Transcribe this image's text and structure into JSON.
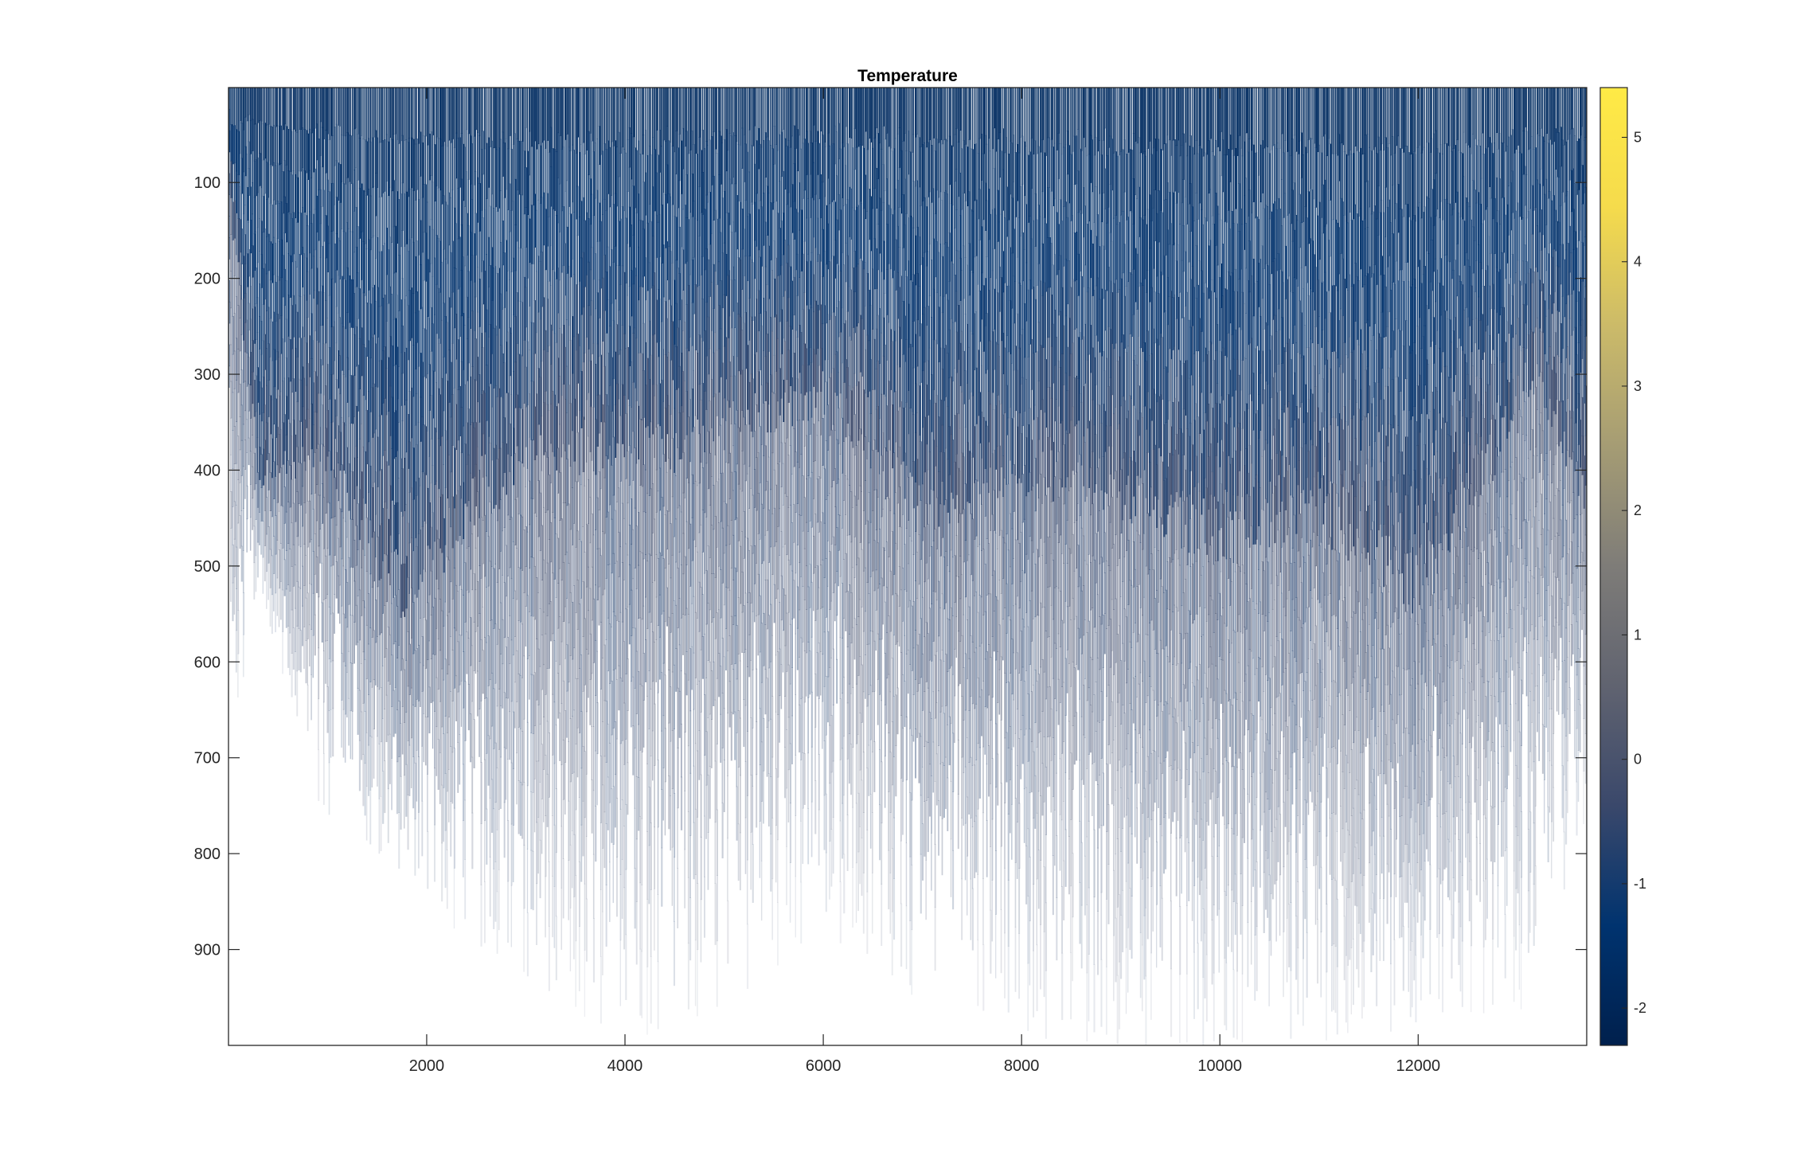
{
  "chart_data": {
    "type": "heatmap",
    "title": "Temperature",
    "xlabel": "",
    "ylabel": "",
    "x_range": [
      1,
      13700
    ],
    "y_range": [
      1,
      1000
    ],
    "y_reversed": true,
    "x_ticks": [
      2000,
      4000,
      6000,
      8000,
      10000,
      12000
    ],
    "y_ticks": [
      100,
      200,
      300,
      400,
      500,
      600,
      700,
      800,
      900
    ],
    "colorbar": {
      "range": [
        -2.3,
        5.4
      ],
      "ticks": [
        -2,
        -1,
        0,
        1,
        2,
        3,
        4,
        5
      ],
      "colormap": "cividis",
      "stops": [
        "#00204d",
        "#00336f",
        "#3a486b",
        "#606370",
        "#7e7c78",
        "#a59c74",
        "#cbba69",
        "#f5db4c",
        "#ffea46"
      ],
      "location": "right"
    },
    "background_color": "#ffffff",
    "surface_mixed_layer": {
      "temperature_at_surface": -1.8,
      "description_free": true
    },
    "profile_depth_envelope": [
      {
        "x": 1,
        "shallow_limit": 100,
        "deep_limit": 750
      },
      {
        "x": 300,
        "shallow_limit": 400,
        "deep_limit": 520
      },
      {
        "x": 1000,
        "shallow_limit": 390,
        "deep_limit": 780
      },
      {
        "x": 1800,
        "shallow_limit": 540,
        "deep_limit": 830
      },
      {
        "x": 2500,
        "shallow_limit": 430,
        "deep_limit": 900
      },
      {
        "x": 3200,
        "shallow_limit": 380,
        "deep_limit": 960
      },
      {
        "x": 4500,
        "shallow_limit": 370,
        "deep_limit": 1000
      },
      {
        "x": 6000,
        "shallow_limit": 320,
        "deep_limit": 880
      },
      {
        "x": 7000,
        "shallow_limit": 440,
        "deep_limit": 960
      },
      {
        "x": 8500,
        "shallow_limit": 400,
        "deep_limit": 1000
      },
      {
        "x": 10000,
        "shallow_limit": 470,
        "deep_limit": 1000
      },
      {
        "x": 11000,
        "shallow_limit": 440,
        "deep_limit": 1000
      },
      {
        "x": 12000,
        "shallow_limit": 520,
        "deep_limit": 980
      },
      {
        "x": 13200,
        "shallow_limit": 300,
        "deep_limit": 960
      },
      {
        "x": 13700,
        "shallow_limit": 420,
        "deep_limit": 760
      }
    ]
  }
}
